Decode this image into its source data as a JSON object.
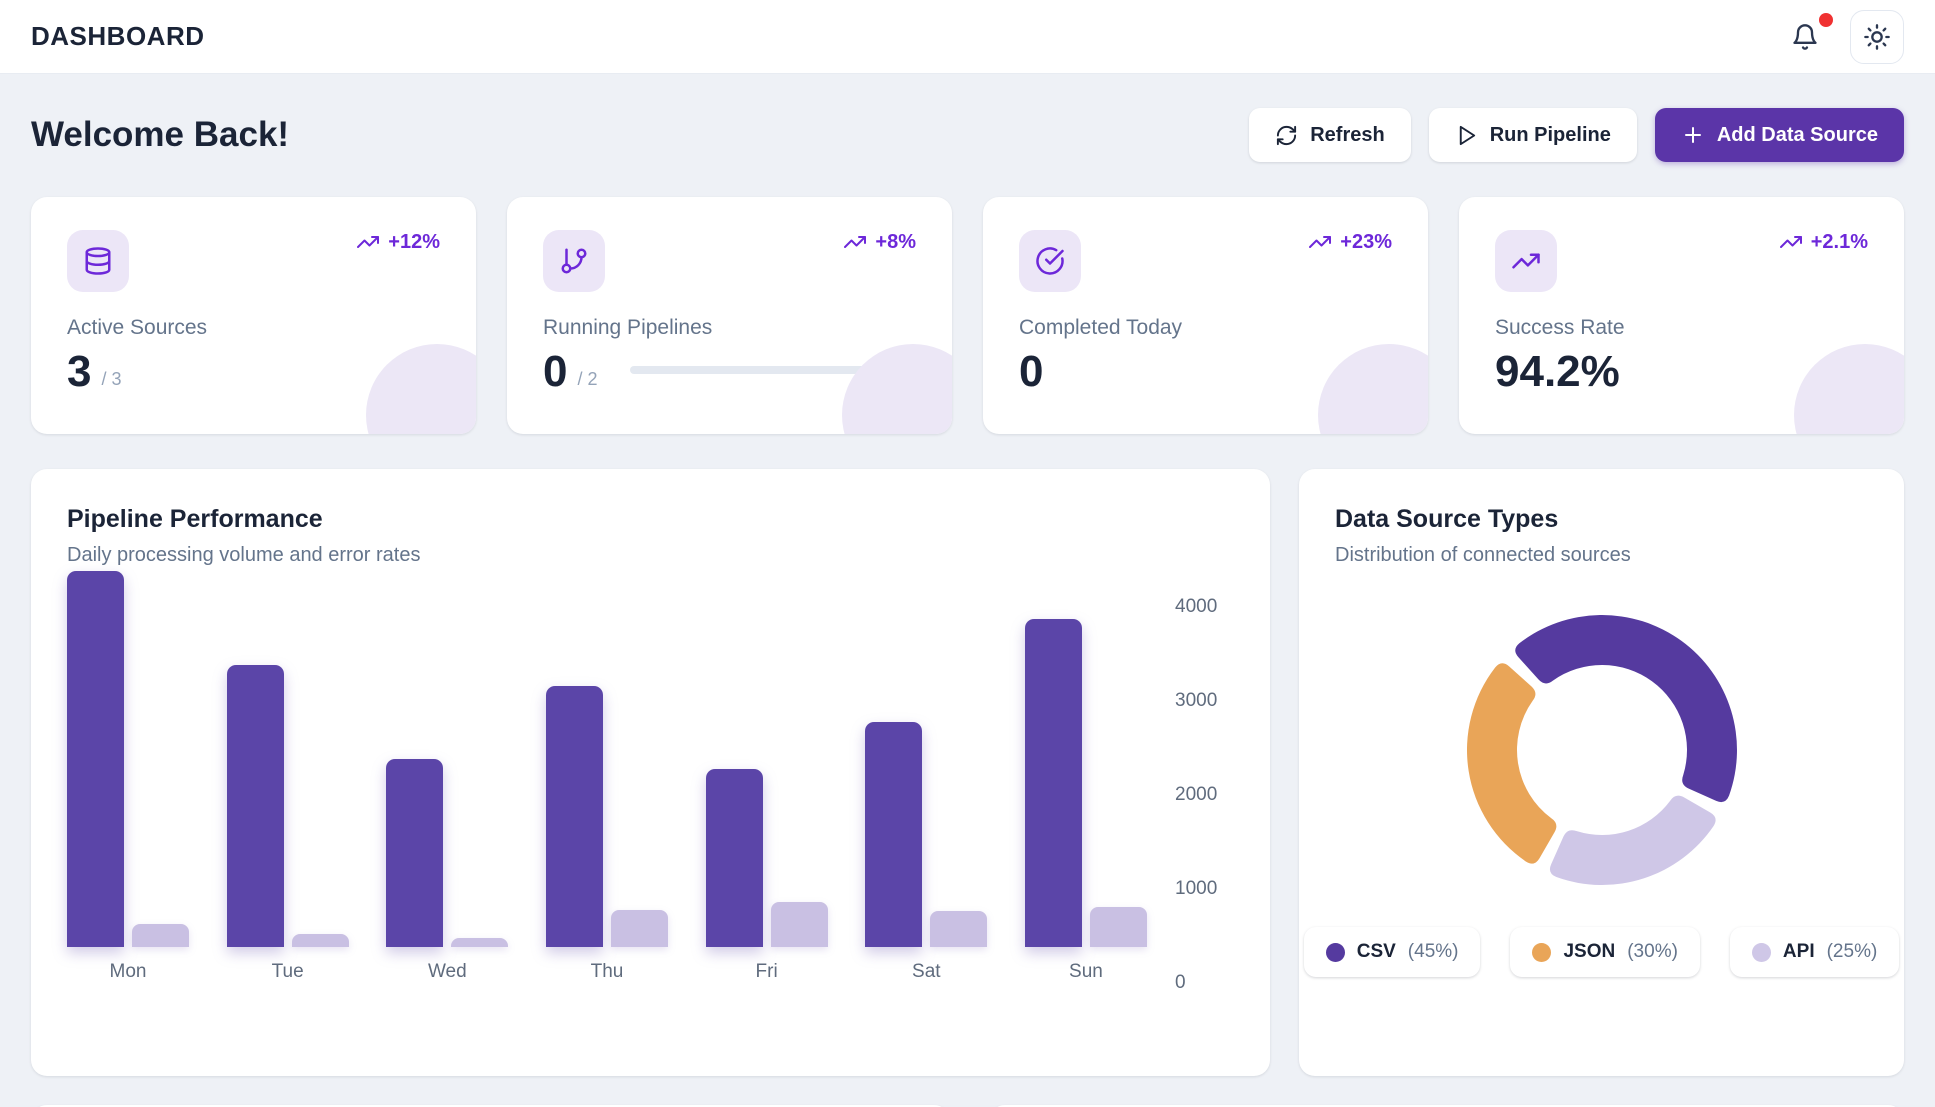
{
  "header": {
    "title": "DASHBOARD"
  },
  "welcome": {
    "title": "Welcome Back!"
  },
  "actions": {
    "refresh": "Refresh",
    "run_pipeline": "Run Pipeline",
    "add_source": "Add Data Source"
  },
  "stats": [
    {
      "icon": "database",
      "label": "Active Sources",
      "value": "3",
      "suffix": "/ 3",
      "trend": "+12%"
    },
    {
      "icon": "git-branch",
      "label": "Running Pipelines",
      "value": "0",
      "suffix": "/ 2",
      "trend": "+8%",
      "progress_pct": 0
    },
    {
      "icon": "check-circle",
      "label": "Completed Today",
      "value": "0",
      "suffix": "",
      "trend": "+23%"
    },
    {
      "icon": "trending-up",
      "label": "Success Rate",
      "value": "94.2%",
      "suffix": "",
      "trend": "+2.1%"
    }
  ],
  "colors": {
    "brand_purple": "#5b35a8",
    "trend_purple": "#6d28d9",
    "bar_main": "#5b45a8",
    "bar_sub": "#c9c0e3",
    "notification_red": "#f03131"
  },
  "chart_data": [
    {
      "type": "bar",
      "title": "Pipeline Performance",
      "subtitle": "Daily processing volume and error rates",
      "categories": [
        "Mon",
        "Tue",
        "Wed",
        "Thu",
        "Fri",
        "Sat",
        "Sun"
      ],
      "series": [
        {
          "name": "volume",
          "color": "#5b45a8",
          "values": [
            4000,
            3000,
            2000,
            2780,
            1890,
            2390,
            3490
          ]
        },
        {
          "name": "errors",
          "color": "#c9c0e3",
          "values": [
            240,
            140,
            100,
            390,
            480,
            380,
            430
          ]
        }
      ],
      "ylim": [
        0,
        4000
      ],
      "yticks": [
        0,
        1000,
        2000,
        3000,
        4000
      ],
      "grid": false,
      "yaxis_position": "right",
      "legend_position": "none"
    },
    {
      "type": "pie",
      "title": "Data Source Types",
      "subtitle": "Distribution of connected sources",
      "labels": [
        "CSV",
        "JSON",
        "API"
      ],
      "values": [
        45,
        30,
        25
      ],
      "colors": [
        "#553a9f",
        "#e9a558",
        "#cfc7e7"
      ],
      "donut": true,
      "start_angle": -27,
      "pad_angle": 6,
      "legend": [
        {
          "name": "CSV",
          "pct": "(45%)"
        },
        {
          "name": "JSON",
          "pct": "(30%)"
        },
        {
          "name": "API",
          "pct": "(25%)"
        }
      ]
    }
  ]
}
